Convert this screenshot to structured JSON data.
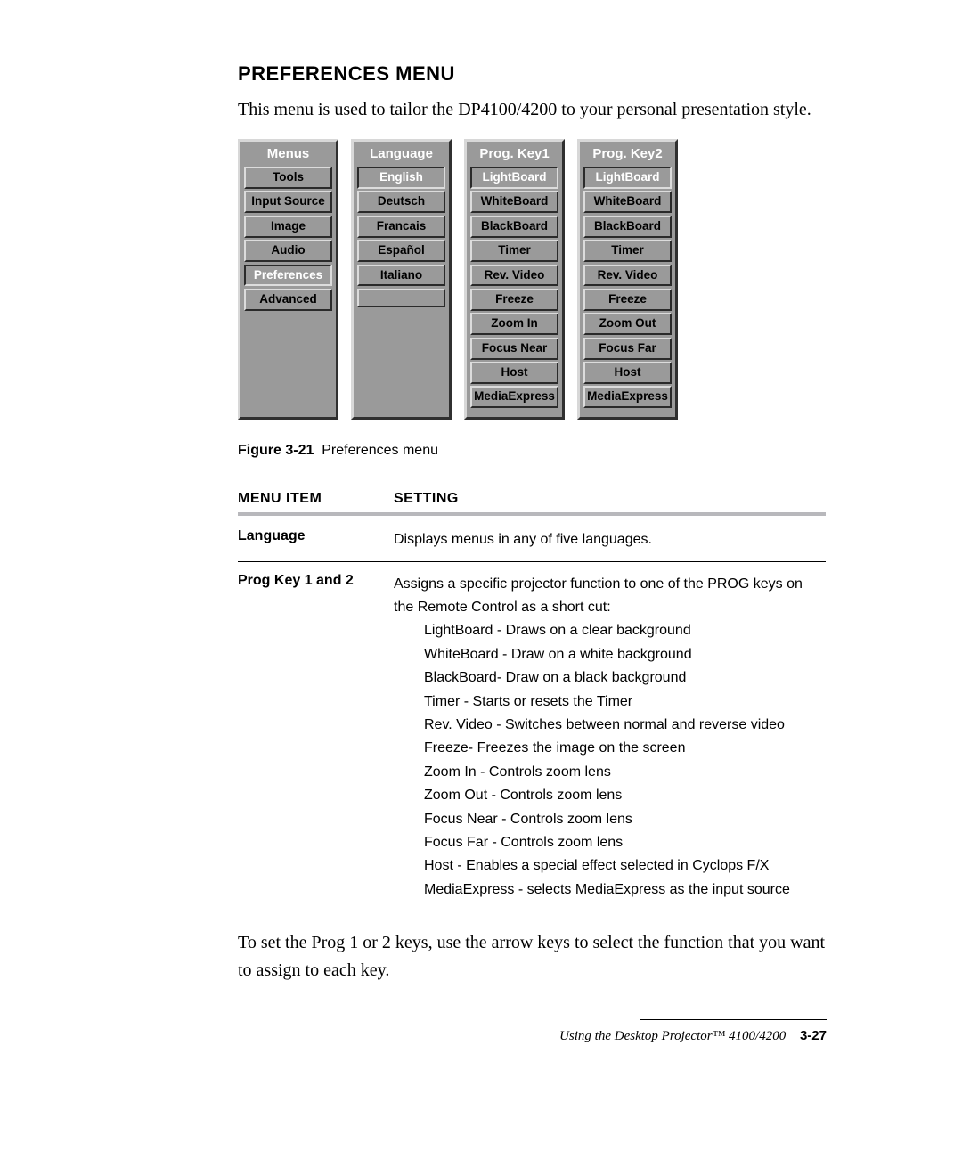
{
  "heading": "PREFERENCES MENU",
  "intro": "This menu is used to tailor the DP4100/4200 to your personal presentation style.",
  "figure": {
    "caption_label": "Figure 3-21",
    "caption_text": "Preferences menu",
    "columns": [
      {
        "title": "Menus",
        "items": [
          {
            "label": "Tools",
            "selected": false
          },
          {
            "label": "Input Source",
            "selected": false
          },
          {
            "label": "Image",
            "selected": false
          },
          {
            "label": "Audio",
            "selected": false
          },
          {
            "label": "Preferences",
            "selected": true
          },
          {
            "label": "Advanced",
            "selected": false
          }
        ]
      },
      {
        "title": "Language",
        "items": [
          {
            "label": "English",
            "selected": true
          },
          {
            "label": "Deutsch",
            "selected": false
          },
          {
            "label": "Francais",
            "selected": false
          },
          {
            "label": "Español",
            "selected": false
          },
          {
            "label": "Italiano",
            "selected": false
          }
        ],
        "trailing_blank": true
      },
      {
        "title": "Prog. Key1",
        "items": [
          {
            "label": "LightBoard",
            "selected": true
          },
          {
            "label": "WhiteBoard",
            "selected": false
          },
          {
            "label": "BlackBoard",
            "selected": false
          },
          {
            "label": "Timer",
            "selected": false
          },
          {
            "label": "Rev. Video",
            "selected": false
          },
          {
            "label": "Freeze",
            "selected": false
          },
          {
            "label": "Zoom In",
            "selected": false
          },
          {
            "label": "Focus Near",
            "selected": false
          },
          {
            "label": "Host",
            "selected": false
          },
          {
            "label": "MediaExpress",
            "selected": false
          }
        ]
      },
      {
        "title": "Prog. Key2",
        "items": [
          {
            "label": "LightBoard",
            "selected": true
          },
          {
            "label": "WhiteBoard",
            "selected": false
          },
          {
            "label": "BlackBoard",
            "selected": false
          },
          {
            "label": "Timer",
            "selected": false
          },
          {
            "label": "Rev. Video",
            "selected": false
          },
          {
            "label": "Freeze",
            "selected": false
          },
          {
            "label": "Zoom Out",
            "selected": false
          },
          {
            "label": "Focus Far",
            "selected": false
          },
          {
            "label": "Host",
            "selected": false
          },
          {
            "label": "MediaExpress",
            "selected": false
          }
        ]
      }
    ]
  },
  "table": {
    "head_a": "MENU ITEM",
    "head_b": "SETTING",
    "rows": [
      {
        "item": "Language",
        "setting": "Displays menus in any of five languages.",
        "sub": []
      },
      {
        "item": "Prog Key 1 and 2",
        "setting": "Assigns a specific projector function to one of the PROG keys on the Remote Control as a short cut:",
        "sub": [
          "LightBoard - Draws on a clear background",
          "WhiteBoard - Draw on a white background",
          "BlackBoard- Draw on a black background",
          "Timer - Starts or resets the Timer",
          "Rev. Video - Switches between normal and reverse video",
          "Freeze- Freezes the image on the screen",
          "Zoom In - Controls zoom lens",
          "Zoom Out - Controls zoom lens",
          "Focus Near - Controls zoom lens",
          "Focus Far - Controls zoom lens",
          "Host - Enables a special effect selected in Cyclops F/X",
          "MediaExpress - selects MediaExpress as the input source"
        ]
      }
    ]
  },
  "outro": "To set the Prog 1 or 2 keys, use the arrow keys to select the function that you want to assign to each key.",
  "footer": {
    "text": "Using the Desktop Projector™ 4100/4200",
    "page": "3-27"
  },
  "colors": {
    "panel_bg": "#9a9a9a",
    "btn_light": "#dcdcdc",
    "btn_dark": "#2a2a2a",
    "rule": "#b8b8bc"
  }
}
